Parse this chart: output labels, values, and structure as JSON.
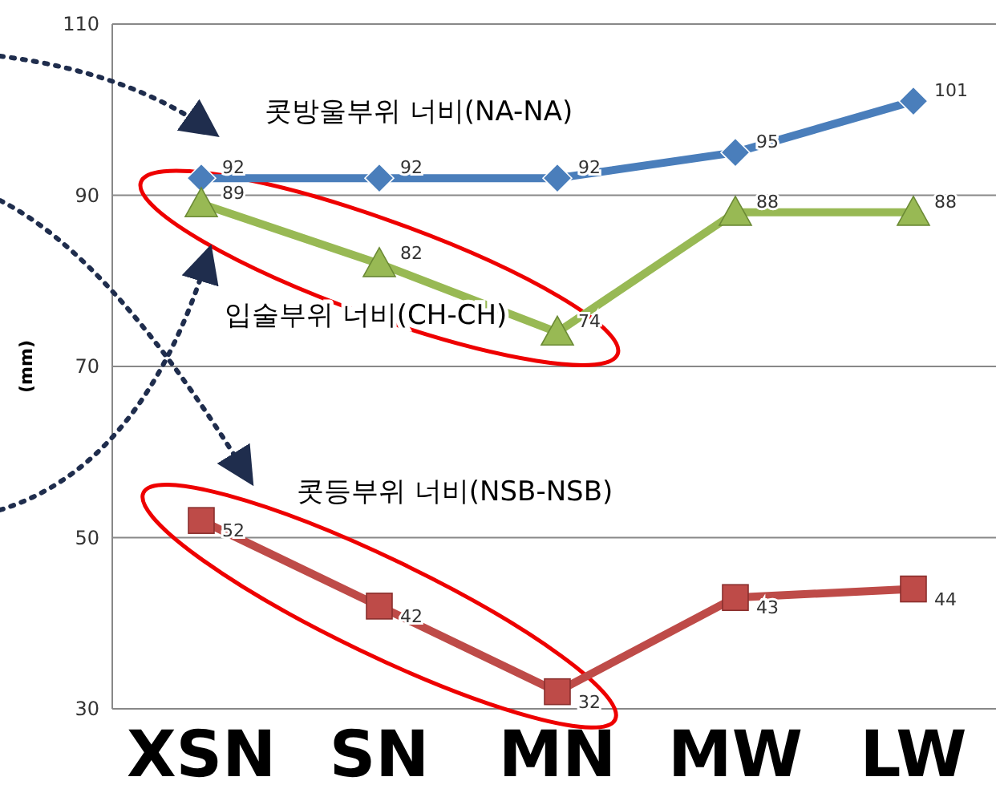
{
  "chart_data": {
    "type": "line",
    "ylabel": "(mm)",
    "categories": [
      "XSN",
      "SN",
      "MN",
      "MW",
      "LW"
    ],
    "series": [
      {
        "name": "콧방울부위 너비(NA-NA)",
        "color": "#4a7ebb",
        "marker": "diamond",
        "values": [
          92,
          92,
          92,
          95,
          101
        ]
      },
      {
        "name": "입술부위 너비(CH-CH)",
        "color": "#98b954",
        "marker": "triangle",
        "values": [
          89,
          82,
          74,
          88,
          88
        ]
      },
      {
        "name": "콧등부위 너비(NSB-NSB)",
        "color": "#be4b48",
        "marker": "square",
        "values": [
          52,
          42,
          32,
          43,
          44
        ]
      }
    ],
    "ylim": [
      30,
      110
    ],
    "yticks": [
      30,
      50,
      70,
      90,
      110
    ],
    "grid": "y",
    "data_labels": true,
    "legend": false
  }
}
